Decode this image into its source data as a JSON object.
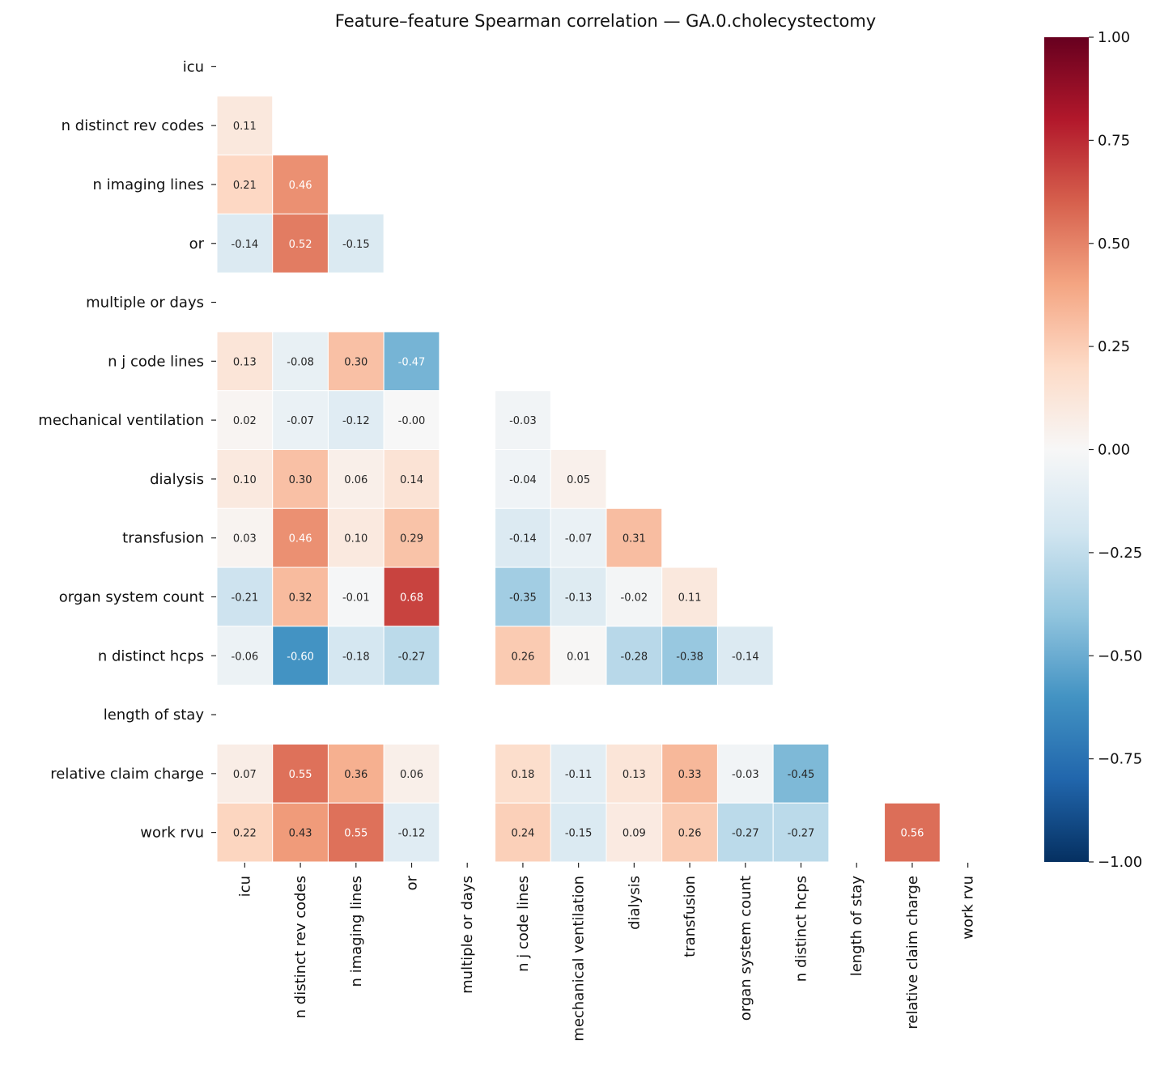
{
  "chart_data": {
    "type": "heatmap",
    "title": "Feature–feature Spearman correlation — GA.0.cholecystectomy",
    "labels": [
      "icu",
      "n distinct rev codes",
      "n imaging lines",
      "or",
      "multiple or days",
      "n j code lines",
      "mechanical ventilation",
      "dialysis",
      "transfusion",
      "organ system count",
      "n distinct hcps",
      "length of stay",
      "relative claim charge",
      "work rvu"
    ],
    "mask": "upper triangle including diagonal",
    "matrix_lower": [
      [],
      [
        0.11
      ],
      [
        0.21,
        0.46
      ],
      [
        -0.14,
        0.52,
        -0.15
      ],
      [
        null,
        null,
        null,
        null
      ],
      [
        0.13,
        -0.08,
        0.3,
        -0.47,
        null
      ],
      [
        0.02,
        -0.07,
        -0.12,
        -0.0,
        null,
        -0.03
      ],
      [
        0.1,
        0.3,
        0.06,
        0.14,
        null,
        -0.04,
        0.05
      ],
      [
        0.03,
        0.46,
        0.1,
        0.29,
        null,
        -0.14,
        -0.07,
        0.31
      ],
      [
        -0.21,
        0.32,
        -0.01,
        0.68,
        null,
        -0.35,
        -0.13,
        -0.02,
        0.11
      ],
      [
        -0.06,
        -0.6,
        -0.18,
        -0.27,
        null,
        0.26,
        0.01,
        -0.28,
        -0.38,
        -0.14
      ],
      [
        null,
        null,
        null,
        null,
        null,
        null,
        null,
        null,
        null,
        null,
        null
      ],
      [
        0.07,
        0.55,
        0.36,
        0.06,
        null,
        0.18,
        -0.11,
        0.13,
        0.33,
        -0.03,
        -0.45,
        null
      ],
      [
        0.22,
        0.43,
        0.55,
        -0.12,
        null,
        0.24,
        -0.15,
        0.09,
        0.26,
        -0.27,
        -0.27,
        null,
        0.56
      ]
    ],
    "colormap": "RdBu_r",
    "vmin": -1,
    "vmax": 1,
    "colorbar_ticks": [
      "1.00",
      "0.75",
      "0.50",
      "0.25",
      "0.00",
      "−0.25",
      "−0.50",
      "−0.75",
      "−1.00"
    ],
    "colorbar_tick_values": [
      1,
      0.75,
      0.5,
      0.25,
      0,
      -0.25,
      -0.5,
      -0.75,
      -1
    ],
    "value_format": "2 decimals"
  }
}
